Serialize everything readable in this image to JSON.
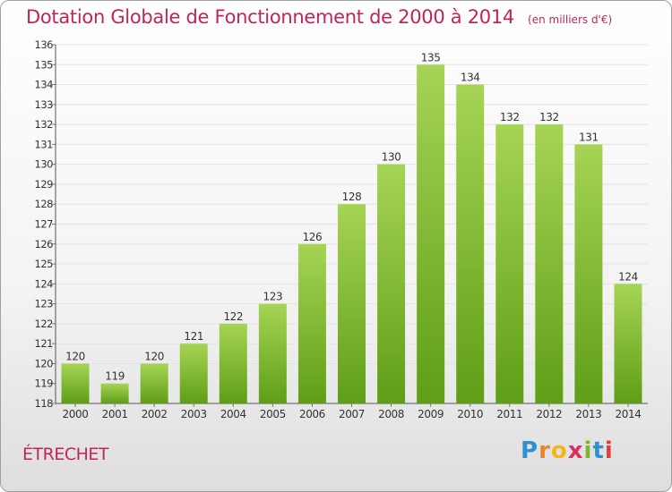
{
  "header": {
    "title": "Dotation Globale de Fonctionnement de 2000 à 2014",
    "unit": "(en milliers d'€)"
  },
  "footer": {
    "commune": "ÉTRECHET",
    "brand": "Proxiti"
  },
  "colors": {
    "title": "#c0245c",
    "bar_light": "#a6d455",
    "bar_dark": "#5f9e16",
    "grid": "#e3e3e3"
  },
  "chart_data": {
    "type": "bar",
    "title": "Dotation Globale de Fonctionnement de 2000 à 2014",
    "categories": [
      "2000",
      "2001",
      "2002",
      "2003",
      "2004",
      "2005",
      "2006",
      "2007",
      "2008",
      "2009",
      "2010",
      "2011",
      "2012",
      "2013",
      "2014"
    ],
    "values": [
      120,
      119,
      120,
      121,
      122,
      123,
      126,
      128,
      130,
      135,
      134,
      132,
      132,
      131,
      124
    ],
    "ylim": [
      118,
      136
    ],
    "yticks": [
      "118",
      "119",
      "120",
      "121",
      "122",
      "123",
      "124",
      "125",
      "126",
      "127",
      "128",
      "129",
      "130",
      "131",
      "132",
      "133",
      "134",
      "135",
      "136"
    ],
    "grid": true,
    "data_labels": true
  }
}
